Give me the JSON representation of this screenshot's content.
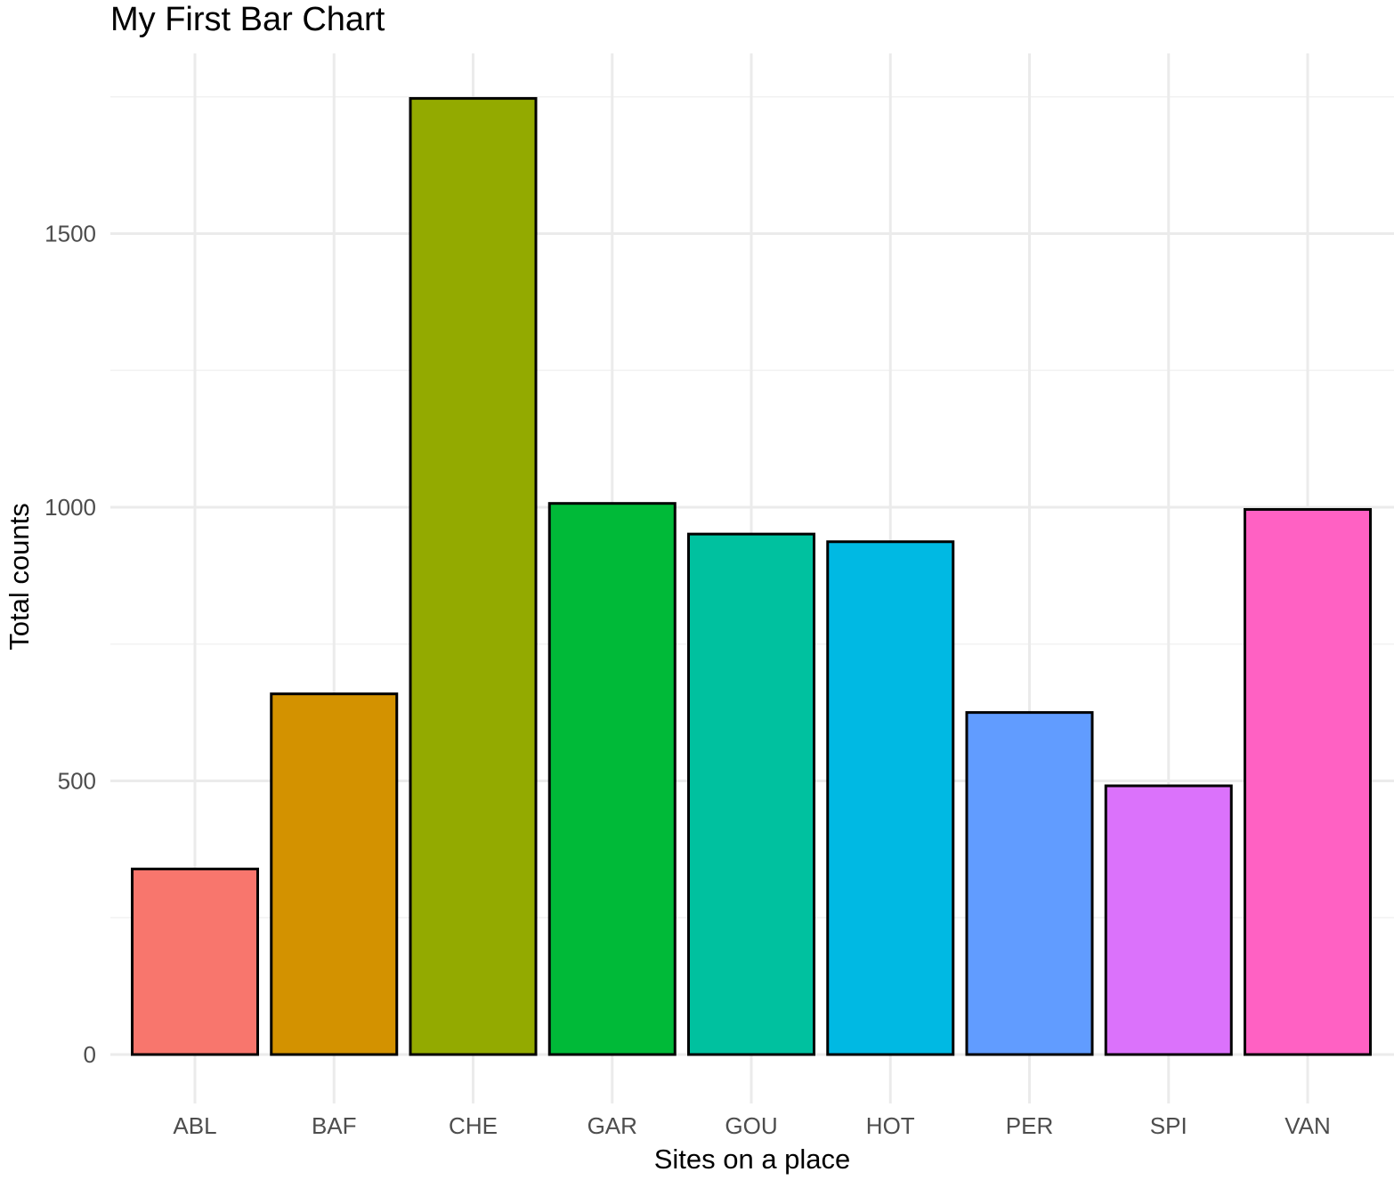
{
  "chart_data": {
    "type": "bar",
    "title": "My First Bar Chart",
    "xlabel": "Sites on a place",
    "ylabel": "Total counts",
    "categories": [
      "ABL",
      "BAF",
      "CHE",
      "GAR",
      "GOU",
      "HOT",
      "PER",
      "SPI",
      "VAN"
    ],
    "values": [
      339,
      659,
      1747,
      1007,
      951,
      937,
      625,
      491,
      996
    ],
    "colors": [
      "#F8766D",
      "#D39200",
      "#93AA00",
      "#00BA38",
      "#00C19F",
      "#00B9E3",
      "#619CFF",
      "#DB72FB",
      "#FF61C3"
    ],
    "bar_outline": "#000000",
    "yticks": [
      0,
      500,
      1000,
      1500
    ],
    "ytick_labels": [
      "0",
      "500",
      "1000",
      "1500"
    ],
    "ylim": [
      0,
      1850
    ],
    "grid": true,
    "legend": "none"
  }
}
